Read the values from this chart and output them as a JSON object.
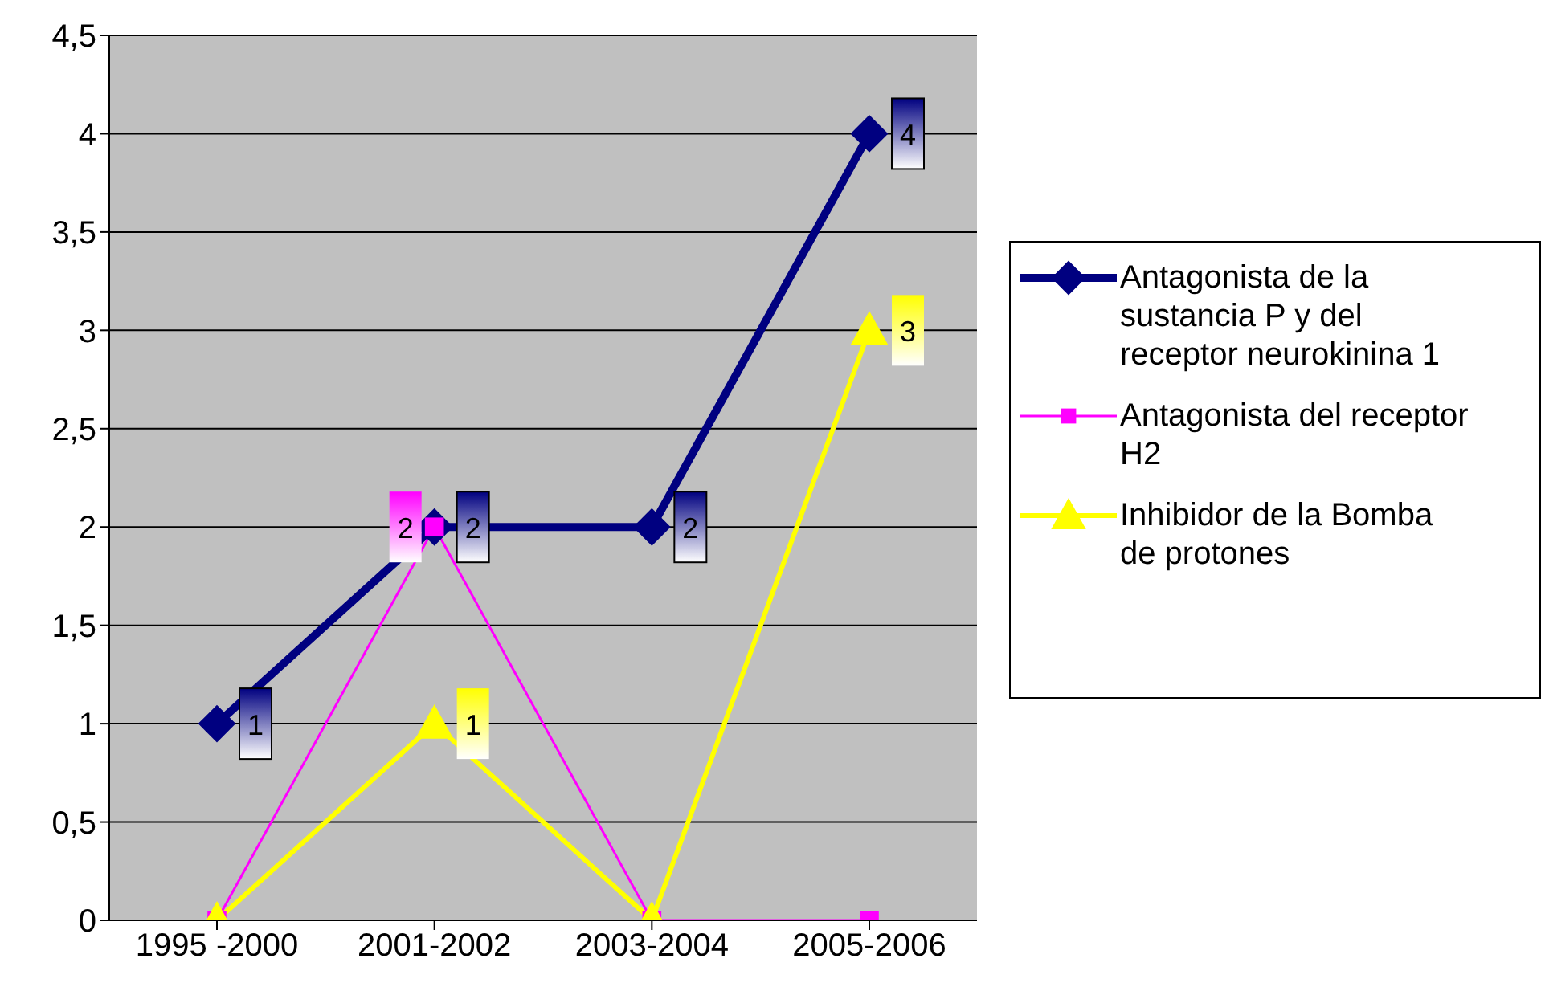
{
  "chart_data": {
    "type": "line",
    "categories": [
      "1995 -2000",
      "2001-2002",
      "2003-2004",
      "2005-2006"
    ],
    "series": [
      {
        "name": "Antagonista de la sustancia P y del receptor neurokinina 1",
        "color": "#000080",
        "marker": "diamond",
        "values": [
          1,
          2,
          2,
          4
        ],
        "value_labels": [
          "1",
          "2",
          "2",
          "4"
        ]
      },
      {
        "name": "Antagonista del receptor H2",
        "color": "#ff00ff",
        "marker": "square",
        "values": [
          0,
          2,
          0,
          0
        ],
        "value_labels": [
          null,
          "2",
          null,
          null
        ]
      },
      {
        "name": "Inhibidor de la Bomba de protones",
        "color": "#ffff00",
        "marker": "triangle",
        "values": [
          0,
          1,
          0,
          3
        ],
        "value_labels": [
          null,
          "1",
          null,
          "3"
        ]
      }
    ],
    "ylim": [
      0,
      4.5
    ],
    "yticks": [
      0,
      {
        "value": 0.5,
        "label": "0,5"
      },
      1,
      {
        "value": 1.5,
        "label": "1,5"
      },
      2,
      {
        "value": 2.5,
        "label": "2,5"
      },
      3,
      {
        "value": 3.5,
        "label": "3,5"
      },
      4,
      {
        "value": 4.5,
        "label": "4,5"
      }
    ],
    "grid": "y",
    "legend": "right"
  }
}
